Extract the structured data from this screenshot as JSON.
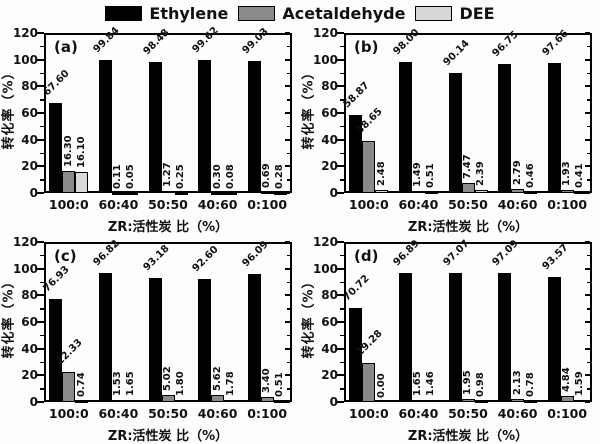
{
  "legend": {
    "items": [
      {
        "name": "ethylene",
        "label": "Ethylene",
        "color": "#000000"
      },
      {
        "name": "acetaldehyde",
        "label": "Acetaldehyde",
        "color": "#8a8a8a"
      },
      {
        "name": "dee",
        "label": "DEE",
        "color": "#d8d8d8"
      }
    ]
  },
  "axes": {
    "ylabel": "转化率（%）",
    "xlabel": "ZR:活性炭 比（%）",
    "ylim": [
      0,
      120
    ],
    "ytick_step": 20,
    "yticks": [
      0,
      20,
      40,
      60,
      80,
      100,
      120
    ],
    "minor_tick_step": 10
  },
  "series_colors": {
    "Ethylene": "#000000",
    "Acetaldehyde": "#8a8a8a",
    "DEE": "#d8d8d8"
  },
  "chart_data": [
    {
      "type": "bar",
      "panel_label": "(a)",
      "categories": [
        "100:0",
        "60:40",
        "50:50",
        "40:60",
        "0:100"
      ],
      "series": [
        {
          "name": "Ethylene",
          "values": [
            67.6,
            99.84,
            98.48,
            99.62,
            99.03
          ]
        },
        {
          "name": "Acetaldehyde",
          "values": [
            16.3,
            0.11,
            1.27,
            0.3,
            0.69
          ]
        },
        {
          "name": "DEE",
          "values": [
            16.1,
            0.05,
            0.25,
            0.08,
            0.28
          ]
        }
      ],
      "xlabel": "ZR:活性炭 比（%）",
      "ylabel": "转化率（%）",
      "ylim": [
        0,
        120
      ]
    },
    {
      "type": "bar",
      "panel_label": "(b)",
      "categories": [
        "100:0",
        "60:40",
        "50:50",
        "40:60",
        "0:100"
      ],
      "series": [
        {
          "name": "Ethylene",
          "values": [
            58.87,
            98.0,
            90.14,
            96.75,
            97.66
          ]
        },
        {
          "name": "Acetaldehyde",
          "values": [
            38.65,
            1.49,
            7.47,
            2.79,
            1.93
          ]
        },
        {
          "name": "DEE",
          "values": [
            2.48,
            0.51,
            2.39,
            0.46,
            0.41
          ]
        }
      ],
      "xlabel": "ZR:活性炭 比（%）",
      "ylabel": "转化率（%）",
      "ylim": [
        0,
        120
      ]
    },
    {
      "type": "bar",
      "panel_label": "(c)",
      "categories": [
        "100:0",
        "60:40",
        "50:50",
        "40:60",
        "0:100"
      ],
      "series": [
        {
          "name": "Ethylene",
          "values": [
            76.93,
            96.82,
            93.18,
            92.6,
            96.09
          ]
        },
        {
          "name": "Acetaldehyde",
          "values": [
            22.33,
            1.53,
            5.02,
            5.62,
            3.4
          ]
        },
        {
          "name": "DEE",
          "values": [
            0.74,
            1.65,
            1.8,
            1.78,
            0.51
          ]
        }
      ],
      "xlabel": "ZR:活性炭 比（%）",
      "ylabel": "转化率（%）",
      "ylim": [
        0,
        120
      ]
    },
    {
      "type": "bar",
      "panel_label": "(d)",
      "categories": [
        "100:0",
        "60:40",
        "50:50",
        "40:60",
        "0:100"
      ],
      "series": [
        {
          "name": "Ethylene",
          "values": [
            70.72,
            96.89,
            97.07,
            97.09,
            93.57
          ]
        },
        {
          "name": "Acetaldehyde",
          "values": [
            29.28,
            1.65,
            1.95,
            2.13,
            4.84
          ]
        },
        {
          "name": "DEE",
          "values": [
            0.0,
            1.46,
            0.98,
            0.78,
            1.59
          ]
        }
      ],
      "xlabel": "ZR:活性炭 比（%）",
      "ylabel": "转化率（%）",
      "ylim": [
        0,
        120
      ]
    }
  ]
}
